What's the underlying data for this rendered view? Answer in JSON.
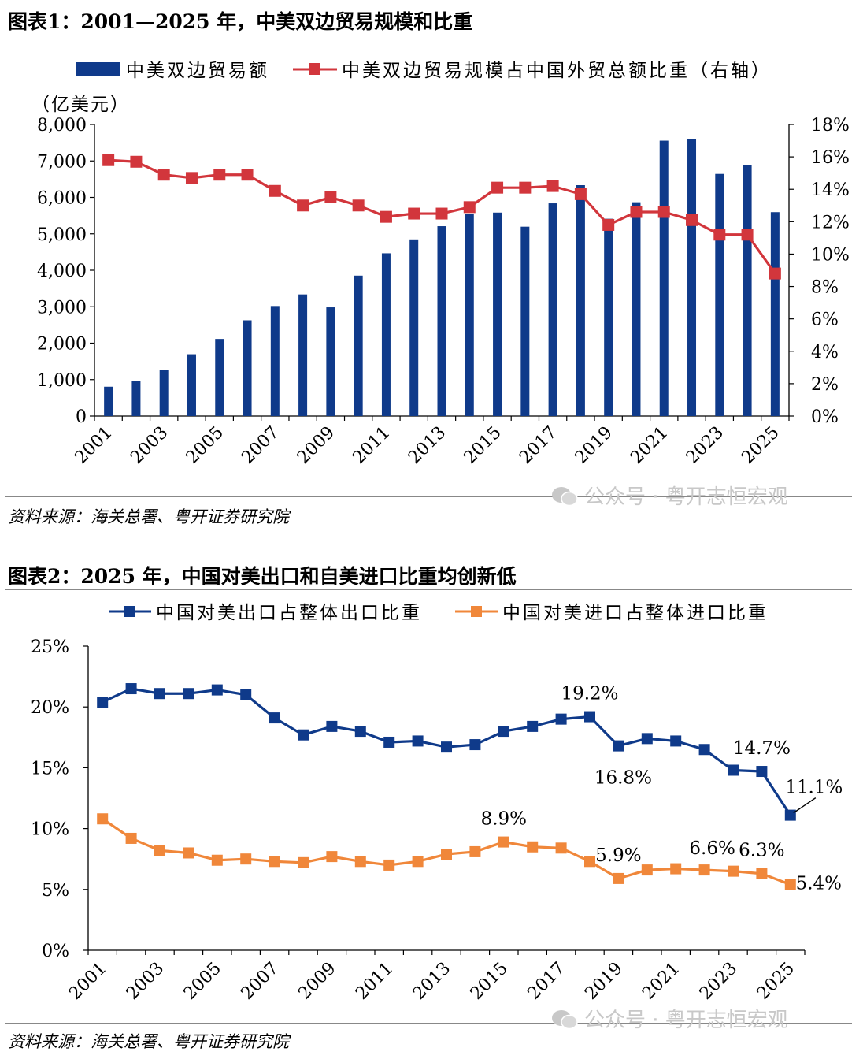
{
  "figure1": {
    "title": "图表1：2001—2025 年，中美双边贸易规模和比重",
    "source": "资料来源：海关总署、粤开证券研究院",
    "watermark": "公众号 · 粤开志恒宏观",
    "chart_data": {
      "type": "bar+line",
      "categories": [
        "2001",
        "2002",
        "2003",
        "2004",
        "2005",
        "2006",
        "2007",
        "2008",
        "2009",
        "2010",
        "2011",
        "2012",
        "2013",
        "2014",
        "2015",
        "2016",
        "2017",
        "2018",
        "2019",
        "2020",
        "2021",
        "2022",
        "2023",
        "2024",
        "2025"
      ],
      "x_tick_labels": [
        "2001",
        "2003",
        "2005",
        "2007",
        "2009",
        "2011",
        "2013",
        "2015",
        "2017",
        "2019",
        "2021",
        "2023",
        "2025"
      ],
      "ylabel": "（亿美元）",
      "ylim": [
        0,
        8000
      ],
      "y_ticks": [
        "0",
        "1,000",
        "2,000",
        "3,000",
        "4,000",
        "5,000",
        "6,000",
        "7,000",
        "8,000"
      ],
      "y2lim": [
        0,
        18
      ],
      "y2_ticks": [
        "0%",
        "2%",
        "4%",
        "6%",
        "8%",
        "10%",
        "12%",
        "14%",
        "16%",
        "18%"
      ],
      "legend_position": "top",
      "series": [
        {
          "name": "中美双边贸易额",
          "type": "bar",
          "axis": "left",
          "color": "#0f3a8a",
          "values": [
            805,
            971,
            1263,
            1696,
            2116,
            2627,
            3020,
            3337,
            2983,
            3853,
            4466,
            4847,
            5210,
            5551,
            5583,
            5196,
            5837,
            6335,
            5413,
            5867,
            7556,
            7594,
            6644,
            6884,
            5595
          ]
        },
        {
          "name": "中美双边贸易规模占中国外贸总额比重（右轴）",
          "type": "line",
          "axis": "right",
          "color": "#d2363c",
          "values": [
            15.8,
            15.7,
            14.9,
            14.7,
            14.9,
            14.9,
            13.9,
            13.0,
            13.5,
            13.0,
            12.3,
            12.5,
            12.5,
            12.9,
            14.1,
            14.1,
            14.2,
            13.7,
            11.8,
            12.6,
            12.6,
            12.1,
            11.2,
            11.2,
            8.8
          ]
        }
      ]
    }
  },
  "figure2": {
    "title": "图表2：2025 年，中国对美出口和自美进口比重均创新低",
    "source": "资料来源：海关总署、粤开证券研究院",
    "watermark": "公众号 · 粤开志恒宏观",
    "chart_data": {
      "type": "line",
      "categories": [
        "2001",
        "2002",
        "2003",
        "2004",
        "2005",
        "2006",
        "2007",
        "2008",
        "2009",
        "2010",
        "2011",
        "2012",
        "2013",
        "2014",
        "2015",
        "2016",
        "2017",
        "2018",
        "2019",
        "2020",
        "2021",
        "2022",
        "2023",
        "2024",
        "2025"
      ],
      "x_tick_labels": [
        "2001",
        "2003",
        "2005",
        "2007",
        "2009",
        "2011",
        "2013",
        "2015",
        "2017",
        "2019",
        "2021",
        "2023",
        "2025"
      ],
      "ylim": [
        0,
        25
      ],
      "y_ticks": [
        "0%",
        "5%",
        "10%",
        "15%",
        "20%",
        "25%"
      ],
      "legend_position": "top",
      "series": [
        {
          "name": "中国对美出口占整体出口比重",
          "color": "#0f3a8a",
          "values": [
            20.4,
            21.5,
            21.1,
            21.1,
            21.4,
            21.0,
            19.1,
            17.7,
            18.4,
            18.0,
            17.1,
            17.2,
            16.7,
            16.9,
            18.0,
            18.4,
            19.0,
            19.2,
            16.8,
            17.4,
            17.2,
            16.5,
            14.8,
            14.7,
            11.1
          ]
        },
        {
          "name": "中国对美进口占整体进口比重",
          "color": "#f0873a",
          "values": [
            10.8,
            9.2,
            8.2,
            8.0,
            7.4,
            7.5,
            7.3,
            7.2,
            7.7,
            7.3,
            7.0,
            7.3,
            7.9,
            8.1,
            8.9,
            8.5,
            8.4,
            7.3,
            5.9,
            6.6,
            6.7,
            6.6,
            6.5,
            6.3,
            5.4
          ]
        }
      ],
      "annotations": [
        {
          "text": "19.2%",
          "series": 0,
          "index": 17
        },
        {
          "text": "16.8%",
          "series": 0,
          "index": 18
        },
        {
          "text": "14.7%",
          "series": 0,
          "index": 23
        },
        {
          "text": "11.1%",
          "series": 0,
          "index": 24
        },
        {
          "text": "8.9%",
          "series": 1,
          "index": 14
        },
        {
          "text": "5.9%",
          "series": 1,
          "index": 18
        },
        {
          "text": "6.6%",
          "series": 1,
          "index": 21
        },
        {
          "text": "6.3%",
          "series": 1,
          "index": 23
        },
        {
          "text": "5.4%",
          "series": 1,
          "index": 24
        }
      ]
    }
  }
}
